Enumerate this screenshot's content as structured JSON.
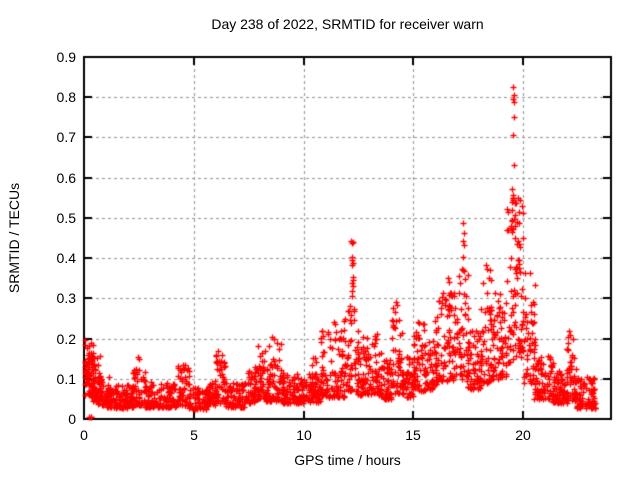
{
  "chart_data": {
    "type": "scatter",
    "title": "Day 238 of 2022, SRMTID for receiver warn",
    "xlabel": "GPS time / hours",
    "ylabel": "SRMTID / TECUs",
    "xlim": [
      0,
      24
    ],
    "ylim": [
      0,
      0.9
    ],
    "x_ticks": [
      0,
      5,
      10,
      15,
      20
    ],
    "x_tick_labels": [
      "0",
      "5",
      "10",
      "15",
      "20"
    ],
    "y_ticks": [
      0,
      0.1,
      0.2,
      0.3,
      0.4,
      0.5,
      0.6,
      0.7,
      0.8,
      0.9
    ],
    "y_tick_labels": [
      "0",
      "0.1",
      "0.2",
      "0.3",
      "0.4",
      "0.5",
      "0.6",
      "0.7",
      "0.8",
      "0.9"
    ],
    "grid": true,
    "legend": "none",
    "marker": {
      "shape": "plus",
      "color": "#ff0000",
      "size": 7
    },
    "colors": {
      "marker": "#ff0000",
      "grid": "#a0a0a0",
      "border": "#000000",
      "background": "#ffffff",
      "text": "#000000"
    },
    "series_name": "SRMTID",
    "point_bands_comment": "dense noisy scatter summarized as bands: [xStart,xEnd,yLow,yHigh,nPoints,biasExp] values in hours / TECUs read from plot",
    "point_bands": [
      [
        0.02,
        0.18,
        0.07,
        0.22,
        16,
        1.2
      ],
      [
        0.05,
        0.5,
        0.055,
        0.205,
        60,
        1.6
      ],
      [
        0.35,
        0.75,
        0.045,
        0.165,
        40,
        1.8
      ],
      [
        0.6,
        1.15,
        0.035,
        0.11,
        48,
        1.8
      ],
      [
        1.05,
        2.25,
        0.028,
        0.085,
        115,
        1.8
      ],
      [
        2.2,
        2.8,
        0.035,
        0.125,
        52,
        2.0
      ],
      [
        2.75,
        4.2,
        0.03,
        0.092,
        125,
        2.0
      ],
      [
        4.2,
        4.8,
        0.035,
        0.135,
        50,
        2.0
      ],
      [
        4.75,
        5.65,
        0.025,
        0.082,
        72,
        1.8
      ],
      [
        5.6,
        6.0,
        0.035,
        0.1,
        35,
        1.8
      ],
      [
        5.95,
        6.45,
        0.04,
        0.16,
        45,
        1.8
      ],
      [
        6.4,
        7.35,
        0.03,
        0.09,
        78,
        1.8
      ],
      [
        7.3,
        7.8,
        0.04,
        0.12,
        42,
        1.8
      ],
      [
        7.75,
        8.3,
        0.05,
        0.185,
        50,
        1.8
      ],
      [
        8.25,
        9.05,
        0.045,
        0.195,
        72,
        1.8
      ],
      [
        9.0,
        10.8,
        0.04,
        0.115,
        155,
        1.8
      ],
      [
        10.35,
        10.65,
        0.06,
        0.155,
        15,
        1.5
      ],
      [
        10.8,
        11.85,
        0.055,
        0.225,
        95,
        1.8
      ],
      [
        11.85,
        12.5,
        0.07,
        0.295,
        58,
        1.6
      ],
      [
        12.45,
        13.55,
        0.06,
        0.215,
        95,
        1.8
      ],
      [
        13.5,
        14.05,
        0.05,
        0.15,
        50,
        1.8
      ],
      [
        14.0,
        14.5,
        0.065,
        0.285,
        46,
        1.5
      ],
      [
        14.45,
        15.05,
        0.055,
        0.165,
        55,
        1.8
      ],
      [
        15.0,
        15.55,
        0.07,
        0.245,
        50,
        1.6
      ],
      [
        15.5,
        16.05,
        0.075,
        0.2,
        50,
        1.8
      ],
      [
        16.0,
        17.1,
        0.095,
        0.315,
        100,
        1.6
      ],
      [
        17.05,
        17.5,
        0.1,
        0.41,
        46,
        1.5
      ],
      [
        17.45,
        18.1,
        0.075,
        0.22,
        60,
        1.8
      ],
      [
        18.05,
        18.6,
        0.09,
        0.37,
        50,
        1.5
      ],
      [
        18.55,
        19.25,
        0.1,
        0.315,
        65,
        1.6
      ],
      [
        19.25,
        20.0,
        0.14,
        0.55,
        90,
        1.25
      ],
      [
        19.95,
        20.55,
        0.09,
        0.37,
        55,
        1.6
      ],
      [
        20.5,
        21.35,
        0.05,
        0.16,
        72,
        1.8
      ],
      [
        21.3,
        22.0,
        0.04,
        0.12,
        65,
        1.8
      ],
      [
        21.95,
        22.45,
        0.045,
        0.215,
        50,
        1.7
      ],
      [
        22.4,
        23.3,
        0.028,
        0.105,
        88,
        1.8
      ]
    ],
    "peak_points_comment": "distinct outlier points [x hours, y TECUs] read from plot",
    "peak_points": [
      [
        0.22,
        0.004
      ],
      [
        0.3,
        0.004
      ],
      [
        0.34,
        0.004
      ],
      [
        2.45,
        0.155
      ],
      [
        2.52,
        0.148
      ],
      [
        6.12,
        0.168
      ],
      [
        8.58,
        0.205
      ],
      [
        8.64,
        0.198
      ],
      [
        11.38,
        0.242
      ],
      [
        11.44,
        0.236
      ],
      [
        12.17,
        0.443
      ],
      [
        12.21,
        0.437
      ],
      [
        12.24,
        0.44
      ],
      [
        12.19,
        0.402
      ],
      [
        12.22,
        0.396
      ],
      [
        12.25,
        0.388
      ],
      [
        12.2,
        0.383
      ],
      [
        12.23,
        0.352
      ],
      [
        12.26,
        0.345
      ],
      [
        12.21,
        0.338
      ],
      [
        12.24,
        0.33
      ],
      [
        12.2,
        0.318
      ],
      [
        12.22,
        0.305
      ],
      [
        14.2,
        0.29
      ],
      [
        14.25,
        0.283
      ],
      [
        16.58,
        0.35
      ],
      [
        16.63,
        0.34
      ],
      [
        17.24,
        0.487
      ],
      [
        17.29,
        0.462
      ],
      [
        17.27,
        0.443
      ],
      [
        17.31,
        0.432
      ],
      [
        17.26,
        0.402
      ],
      [
        17.3,
        0.368
      ],
      [
        18.32,
        0.382
      ],
      [
        18.37,
        0.373
      ],
      [
        19.55,
        0.825
      ],
      [
        19.57,
        0.805
      ],
      [
        19.53,
        0.795
      ],
      [
        19.56,
        0.787
      ],
      [
        19.6,
        0.752
      ],
      [
        19.54,
        0.705
      ],
      [
        19.58,
        0.632
      ],
      [
        19.5,
        0.572
      ],
      [
        19.55,
        0.556
      ],
      [
        19.52,
        0.545
      ],
      [
        19.61,
        0.538
      ],
      [
        19.47,
        0.52
      ],
      [
        19.63,
        0.508
      ],
      [
        22.08,
        0.218
      ],
      [
        22.14,
        0.21
      ]
    ]
  }
}
